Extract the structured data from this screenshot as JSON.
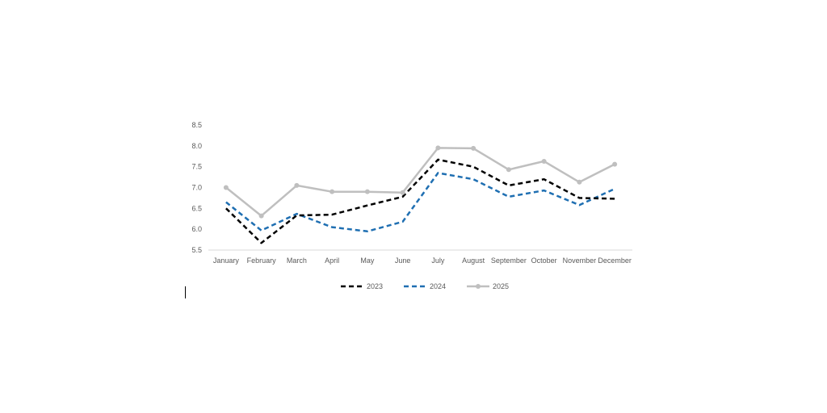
{
  "chart_data": {
    "type": "line",
    "categories": [
      "January",
      "February",
      "March",
      "April",
      "May",
      "June",
      "July",
      "August",
      "September",
      "October",
      "November",
      "December"
    ],
    "ylim": [
      5.5,
      8.5
    ],
    "yticks": [
      "5.5",
      "6.0",
      "6.5",
      "7.0",
      "7.5",
      "8.0",
      "8.5"
    ],
    "grid": false,
    "legend": "bottom",
    "series": [
      {
        "name": "2023",
        "color": "#000000",
        "dashed": true,
        "markers": false,
        "values": [
          6.5,
          5.67,
          6.33,
          6.35,
          6.57,
          6.78,
          7.67,
          7.5,
          7.05,
          7.2,
          6.75,
          6.73
        ]
      },
      {
        "name": "2024",
        "color": "#1f6fb2",
        "dashed": true,
        "markers": false,
        "values": [
          6.65,
          5.97,
          6.37,
          6.05,
          5.95,
          6.18,
          7.35,
          7.2,
          6.78,
          6.93,
          6.58,
          6.97
        ]
      },
      {
        "name": "2025",
        "color": "#bfbfbf",
        "dashed": false,
        "markers": true,
        "values": [
          7.0,
          6.32,
          7.05,
          6.9,
          6.9,
          6.88,
          7.95,
          7.94,
          7.43,
          7.63,
          7.13,
          7.56
        ]
      }
    ]
  }
}
